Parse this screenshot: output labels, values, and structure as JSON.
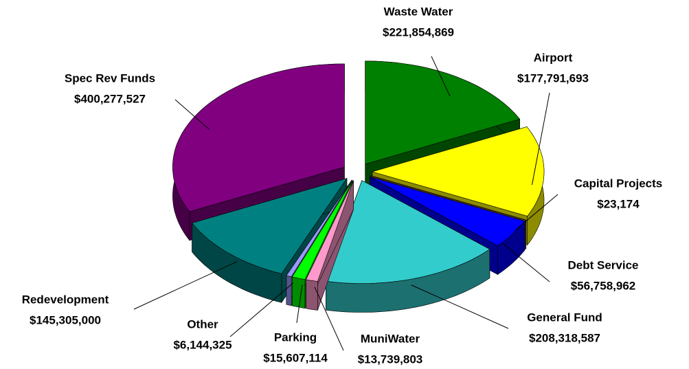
{
  "chart_data": {
    "type": "pie",
    "categories": [
      "Waste Water",
      "Airport",
      "Capital Projects",
      "Debt Service",
      "General Fund",
      "MuniWater",
      "Parking",
      "Other",
      "Redevelopment",
      "Spec Rev Funds"
    ],
    "values": [
      221854869,
      177791693,
      23174,
      56758962,
      208318587,
      13739803,
      15607114,
      6144325,
      145305000,
      400277527
    ],
    "value_labels": [
      "$221,854,869",
      "$177,791,693",
      "$23,174",
      "$56,758,962",
      "$208,318,587",
      "$13,739,803",
      "$15,607,114",
      "$6,144,325",
      "$145,305,000",
      "$400,277,527"
    ],
    "colors": [
      "#008000",
      "#ffff00",
      "#996633",
      "#0000ff",
      "#33cccc",
      "#ff99cc",
      "#00ff00",
      "#9999ff",
      "#008080",
      "#800080"
    ]
  }
}
